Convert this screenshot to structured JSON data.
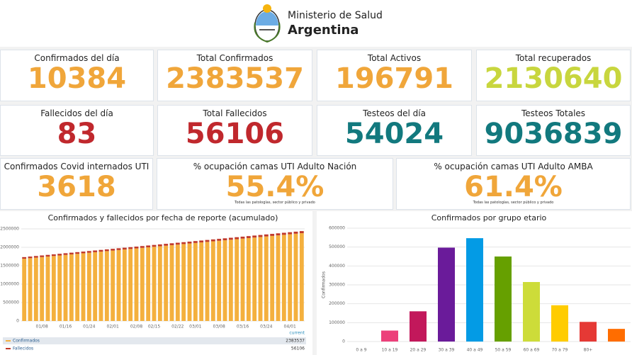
{
  "header": {
    "ministry": "Ministerio de Salud",
    "country": "Argentina"
  },
  "cards": [
    {
      "label": "Confirmados del día",
      "value": "10384",
      "color": "#f0a63a"
    },
    {
      "label": "Total Confirmados",
      "value": "2383537",
      "color": "#f0a63a"
    },
    {
      "label": "Total Activos",
      "value": "196791",
      "color": "#f0a63a"
    },
    {
      "label": "Total recuperados",
      "value": "2130640",
      "color": "#c8d63e"
    },
    {
      "label": "Fallecidos del día",
      "value": "83",
      "color": "#c0282d"
    },
    {
      "label": "Total Fallecidos",
      "value": "56106",
      "color": "#c0282d"
    },
    {
      "label": "Testeos del día",
      "value": "54024",
      "color": "#12797e"
    },
    {
      "label": "Testeos Totales",
      "value": "9036839",
      "color": "#12797e"
    },
    {
      "label": "Confirmados Covid internados UTI",
      "value": "3618",
      "color": "#f0a63a"
    },
    {
      "label": "% ocupación camas UTI Adulto Nación",
      "value": "55.4%",
      "color": "#f0a63a",
      "note": "Todas las patologías, sector público y privado"
    },
    {
      "label": "% ocupación camas UTI Adulto AMBA",
      "value": "61.4%",
      "color": "#f0a63a",
      "note": "Todas las patologías, sector público y privado"
    }
  ],
  "chart_data": [
    {
      "type": "stacked_bar",
      "title": "Confirmados y fallecidos por fecha de reporte (acumulado)",
      "categories": [
        null,
        null,
        null,
        "01/08",
        null,
        null,
        null,
        "01/16",
        null,
        null,
        null,
        "01/24",
        null,
        null,
        null,
        "02/01",
        null,
        null,
        null,
        "02/08",
        null,
        null,
        "02/15",
        null,
        null,
        null,
        "02/22",
        null,
        null,
        "03/01",
        null,
        null,
        null,
        "03/08",
        null,
        null,
        null,
        "03/16",
        null,
        null,
        null,
        "03/24",
        null,
        null,
        null,
        "04/01",
        null,
        null
      ],
      "series": [
        {
          "name": "Confirmados",
          "color": "#f4b03e",
          "values": [
            1690000,
            1704750,
            1719500,
            1734250,
            1749000,
            1763750,
            1778500,
            1793250,
            1808000,
            1822750,
            1837500,
            1852250,
            1867000,
            1881750,
            1896500,
            1911250,
            1926000,
            1940750,
            1955500,
            1970250,
            1985000,
            1999750,
            2014500,
            2029250,
            2044000,
            2058750,
            2073500,
            2088250,
            2103000,
            2117750,
            2132500,
            2147250,
            2162000,
            2176750,
            2191500,
            2206250,
            2221000,
            2235750,
            2250500,
            2265250,
            2280000,
            2294750,
            2309500,
            2324250,
            2339000,
            2353750,
            2368500,
            2383537
          ]
        },
        {
          "name": "Fallecidos",
          "color": "#c0392b",
          "values": [
            44000,
            44258,
            44516,
            44774,
            45032,
            45290,
            45548,
            45806,
            46064,
            46322,
            46580,
            46838,
            47096,
            47354,
            47612,
            47870,
            48128,
            48386,
            48644,
            48902,
            49160,
            49418,
            49676,
            49934,
            50192,
            50450,
            50708,
            50966,
            51224,
            51482,
            51740,
            51998,
            52256,
            52514,
            52772,
            53030,
            53288,
            53546,
            53804,
            54062,
            54320,
            54578,
            54836,
            55094,
            55352,
            55610,
            55868,
            56106
          ]
        }
      ],
      "legend_header": "current",
      "ylim": [
        0,
        2500000
      ],
      "yticks": [
        0,
        500000,
        1000000,
        1500000,
        2000000,
        2500000
      ],
      "grid": true
    },
    {
      "type": "bar",
      "title": "Confirmados por grupo etario",
      "y_label": "Confirmados",
      "categories": [
        "0 a 9",
        "10 a 19",
        "20 a 29",
        "30 a 39",
        "40 a 49",
        "50 a 59",
        "60 a 69",
        "70 a 79",
        "80+",
        null
      ],
      "values": [
        null,
        58000,
        160000,
        497000,
        547000,
        450000,
        315000,
        192000,
        104000,
        67000
      ],
      "colors": [
        "#ec407a",
        "#ec407a",
        "#c2185b",
        "#6a1b9a",
        "#039be5",
        "#66a000",
        "#cddc39",
        "#ffcc00",
        "#e53935",
        "#ff6d00"
      ],
      "ylim": [
        0,
        600000
      ],
      "yticks": [
        0,
        100000,
        200000,
        300000,
        400000,
        500000,
        600000
      ],
      "grid": true
    }
  ]
}
